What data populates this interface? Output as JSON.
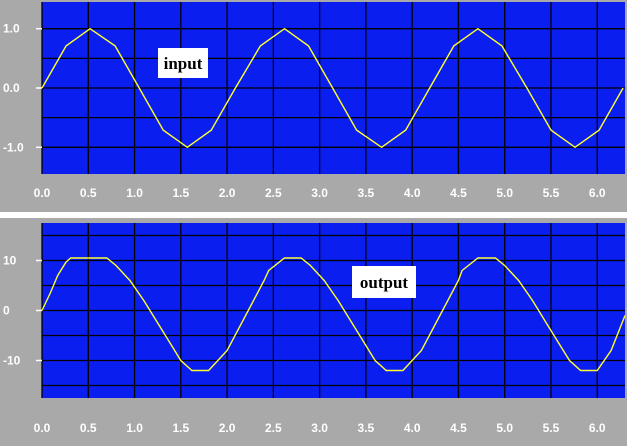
{
  "colors": {
    "plot_background": "#0a1ef0",
    "grid": "#000000",
    "trace": "#ffff33",
    "frame": "#a9a9a9",
    "annotation_box": "#ffffff",
    "tick_label": "#ffffff"
  },
  "chart_data": [
    {
      "type": "line",
      "title": "",
      "xlabel": "",
      "ylabel": "",
      "xlim": [
        0.0,
        6.3
      ],
      "ylim": [
        -1.45,
        1.45
      ],
      "grid": true,
      "annotation": "input",
      "x_ticks": [
        "0.0",
        "0.5",
        "1.0",
        "1.5",
        "2.0",
        "2.5",
        "3.0",
        "3.5",
        "4.0",
        "4.5",
        "5.0",
        "5.5",
        "6.0"
      ],
      "y_ticks": [
        "1.0",
        "0.0",
        "-1.0"
      ],
      "series": [
        {
          "x": [
            0.0,
            0.26,
            0.52,
            0.79,
            1.05,
            1.31,
            1.57,
            1.83,
            2.09,
            2.36,
            2.62,
            2.88,
            3.14,
            3.4,
            3.67,
            3.93,
            4.19,
            4.45,
            4.71,
            4.97,
            5.24,
            5.5,
            5.76,
            6.02,
            6.28
          ],
          "values": [
            0.0,
            0.71,
            1.0,
            0.71,
            0.0,
            -0.71,
            -1.0,
            -0.71,
            0.0,
            0.71,
            1.0,
            0.71,
            0.0,
            -0.71,
            -1.0,
            -0.71,
            0.0,
            0.71,
            1.0,
            0.71,
            0.0,
            -0.71,
            -1.0,
            -0.71,
            0.0
          ]
        }
      ]
    },
    {
      "type": "line",
      "title": "",
      "xlabel": "",
      "ylabel": "",
      "xlim": [
        0.0,
        6.3
      ],
      "ylim": [
        -17.5,
        17.5
      ],
      "grid": true,
      "annotation": "output",
      "x_ticks": [
        "0.0",
        "0.5",
        "1.0",
        "1.5",
        "2.0",
        "2.5",
        "3.0",
        "3.5",
        "4.0",
        "4.5",
        "5.0",
        "5.5",
        "6.0"
      ],
      "y_ticks": [
        "10",
        "0",
        "-10"
      ],
      "series": [
        {
          "x": [
            0.0,
            0.09,
            0.17,
            0.26,
            0.31,
            0.5,
            0.7,
            0.8,
            0.95,
            1.1,
            1.25,
            1.4,
            1.5,
            1.62,
            1.8,
            2.0,
            2.2,
            2.4,
            2.45,
            2.62,
            2.8,
            2.9,
            3.05,
            3.2,
            3.35,
            3.5,
            3.6,
            3.72,
            3.9,
            4.1,
            4.3,
            4.5,
            4.54,
            4.71,
            4.9,
            5.0,
            5.15,
            5.3,
            5.45,
            5.6,
            5.7,
            5.82,
            6.0,
            6.15,
            6.3
          ],
          "values": [
            0.0,
            3.5,
            7.0,
            9.7,
            10.5,
            10.5,
            10.5,
            9.0,
            6.0,
            2.0,
            -2.5,
            -7.0,
            -10.0,
            -12.0,
            -12.0,
            -8.0,
            -1.0,
            6.0,
            8.0,
            10.5,
            10.5,
            9.0,
            6.0,
            2.0,
            -2.5,
            -7.0,
            -10.0,
            -12.0,
            -12.0,
            -8.0,
            -1.0,
            6.0,
            8.0,
            10.5,
            10.5,
            9.0,
            6.0,
            2.0,
            -2.5,
            -7.0,
            -10.0,
            -12.0,
            -12.0,
            -8.0,
            -1.0
          ]
        }
      ]
    }
  ]
}
